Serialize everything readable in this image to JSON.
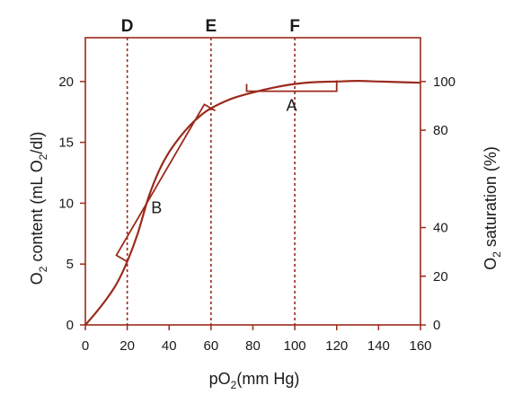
{
  "chart_data": {
    "type": "line",
    "title": "",
    "xlabel": "pO2(mm Hg)",
    "ylabel_left": "O2 content (mL O2/dl)",
    "ylabel_right": "O2 saturation (%)",
    "xlim": [
      0,
      160
    ],
    "ylim_left": [
      0,
      23.6
    ],
    "ylim_right": [
      0,
      118
    ],
    "x_ticks": [
      0,
      20,
      40,
      60,
      80,
      100,
      120,
      140,
      160
    ],
    "y_ticks_left": [
      0,
      5,
      10,
      15,
      20
    ],
    "y_ticks_right": [
      0,
      20,
      40,
      80,
      100
    ],
    "grid": false,
    "line_color": "#9b2a1c",
    "series": [
      {
        "x": [
          0,
          5,
          10,
          15,
          20,
          25,
          30,
          35,
          40,
          45,
          50,
          55,
          60,
          70,
          80,
          90,
          100,
          110,
          120,
          130,
          140,
          150,
          160
        ],
        "y": [
          0,
          1.0,
          2.1,
          3.4,
          5.2,
          7.5,
          10.4,
          12.6,
          14.2,
          15.4,
          16.4,
          17.2,
          17.8,
          18.6,
          19.1,
          19.5,
          19.8,
          19.95,
          20.0,
          20.05,
          20.0,
          19.95,
          19.9
        ]
      }
    ],
    "vertical_markers": [
      {
        "label": "D",
        "x": 20
      },
      {
        "label": "E",
        "x": 60
      },
      {
        "label": "F",
        "x": 100
      }
    ],
    "annotations": [
      {
        "label": "A",
        "bracket": "flat",
        "x_range": [
          77,
          120
        ],
        "y": 19.2
      },
      {
        "label": "B",
        "bracket": "steep",
        "x_start": 20,
        "y_start": 5.2,
        "x_end": 62,
        "y_end": 17.6
      }
    ]
  }
}
